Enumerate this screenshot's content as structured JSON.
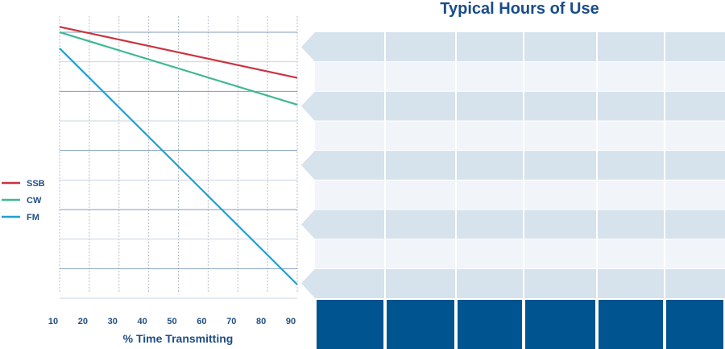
{
  "title": "Typical Hours of Use",
  "chart_data": {
    "type": "line",
    "xlabel": "% Time Transmitting",
    "ylabel": "",
    "xlim": [
      10,
      90
    ],
    "x_ticks": [
      10,
      20,
      30,
      40,
      50,
      60,
      70,
      80,
      90
    ],
    "grid": true,
    "legend_position": "left",
    "series": [
      {
        "name": "SSB",
        "color": "#cc3340",
        "x": [
          10,
          90
        ],
        "y": [
          0.96,
          0.77
        ]
      },
      {
        "name": "CW",
        "color": "#3fb892",
        "x": [
          10,
          90
        ],
        "y": [
          0.94,
          0.67
        ]
      },
      {
        "name": "FM",
        "color": "#1e9fd6",
        "x": [
          10,
          90
        ],
        "y": [
          0.88,
          0.0
        ]
      }
    ]
  },
  "colors": {
    "grid_dotted": "#b8bec6",
    "grid_solid": "#7f9cbf",
    "grid_light": "#c9d5e3",
    "arrow_band": "#d6e2ec",
    "light_band": "#f1f5f9",
    "footer_cell": "#00548f",
    "axis_text": "#1f4e84",
    "title": "#1a4c8b"
  }
}
